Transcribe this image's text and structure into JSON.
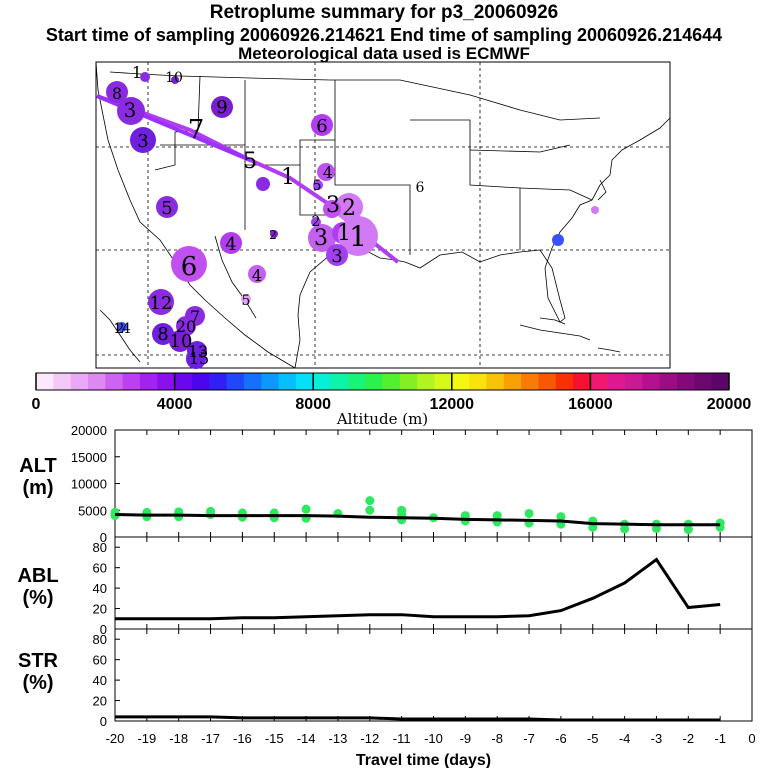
{
  "header": {
    "title": "Retroplume summary for p3_20060926",
    "sampling_line": "Start time of sampling 20060926.214621     End time of sampling 20060926.214644",
    "met_line": "Meteorological data used is ECMWF"
  },
  "colorbar": {
    "tick_labels": [
      "0",
      "4000",
      "8000",
      "12000",
      "16000",
      "20000"
    ],
    "label": "Altitude (m)"
  },
  "map": {
    "labels": [
      "1",
      "10",
      "8",
      "3",
      "9",
      "6",
      "7",
      "3",
      "5",
      "1",
      "4",
      "5",
      "6",
      "5",
      "3",
      "2",
      "2",
      "2",
      "3",
      "1",
      "1",
      "4",
      "3",
      "6",
      "4",
      "5",
      "2",
      "12",
      "7",
      "20",
      "14",
      "8",
      "10",
      "13",
      "15"
    ]
  },
  "chart_data": [
    {
      "type": "line",
      "panel": "ALT",
      "ylabel": "ALT (m)",
      "ylim": [
        0,
        20000
      ],
      "yticks": [
        "0",
        "5000",
        "10000",
        "15000",
        "20000"
      ],
      "x": [
        -20,
        -19,
        -18,
        -17,
        -16,
        -15,
        -14,
        -13,
        -12,
        -11,
        -10,
        -9,
        -8,
        -7,
        -6,
        -5,
        -4,
        -3,
        -2,
        -1
      ],
      "values": [
        4200,
        4100,
        4100,
        4000,
        4000,
        4000,
        4000,
        3900,
        3700,
        3600,
        3500,
        3300,
        3200,
        3100,
        3000,
        2500,
        2400,
        2300,
        2300,
        2300
      ],
      "scatter": [
        [
          -20,
          4000
        ],
        [
          -20,
          4600
        ],
        [
          -19,
          3800
        ],
        [
          -19,
          4600
        ],
        [
          -18,
          3800
        ],
        [
          -18,
          4700
        ],
        [
          -17,
          4200
        ],
        [
          -17,
          4800
        ],
        [
          -16,
          3700
        ],
        [
          -16,
          4500
        ],
        [
          -15,
          3600
        ],
        [
          -15,
          4500
        ],
        [
          -14,
          3500
        ],
        [
          -14,
          5200
        ],
        [
          -13,
          4400
        ],
        [
          -12,
          5000
        ],
        [
          -12,
          6800
        ],
        [
          -11,
          3200
        ],
        [
          -11,
          4200
        ],
        [
          -11,
          5000
        ],
        [
          -10,
          3600
        ],
        [
          -9,
          3000
        ],
        [
          -9,
          4000
        ],
        [
          -8,
          2800
        ],
        [
          -8,
          4000
        ],
        [
          -7,
          2600
        ],
        [
          -7,
          4400
        ],
        [
          -6,
          2400
        ],
        [
          -6,
          3800
        ],
        [
          -5,
          1800
        ],
        [
          -5,
          3000
        ],
        [
          -4,
          1500
        ],
        [
          -4,
          2400
        ],
        [
          -3,
          1600
        ],
        [
          -3,
          2400
        ],
        [
          -2,
          1400
        ],
        [
          -2,
          2400
        ],
        [
          -1,
          1800
        ],
        [
          -1,
          2600
        ]
      ]
    },
    {
      "type": "line",
      "panel": "ABL",
      "ylabel": "ABL (%)",
      "ylim": [
        0,
        90
      ],
      "yticks": [
        "0",
        "20",
        "40",
        "60",
        "80"
      ],
      "x": [
        -20,
        -19,
        -18,
        -17,
        -16,
        -15,
        -14,
        -13,
        -12,
        -11,
        -10,
        -9,
        -8,
        -7,
        -6,
        -5,
        -4,
        -3,
        -2,
        -1
      ],
      "values": [
        10,
        10,
        10,
        10,
        11,
        11,
        12,
        13,
        14,
        14,
        12,
        12,
        12,
        13,
        18,
        30,
        45,
        68,
        21,
        24
      ]
    },
    {
      "type": "line",
      "panel": "STR",
      "ylabel": "STR (%)",
      "ylim": [
        0,
        90
      ],
      "yticks": [
        "0",
        "20",
        "40",
        "60",
        "80"
      ],
      "xlabel": "Travel time (days)",
      "xticks": [
        "-20",
        "-19",
        "-18",
        "-17",
        "-16",
        "-15",
        "-14",
        "-13",
        "-12",
        "-11",
        "-10",
        "-9",
        "-8",
        "-7",
        "-6",
        "-5",
        "-4",
        "-3",
        "-2",
        "-1",
        "0"
      ],
      "x": [
        -20,
        -19,
        -18,
        -17,
        -16,
        -15,
        -14,
        -13,
        -12,
        -11,
        -10,
        -9,
        -8,
        -7,
        -6,
        -5,
        -4,
        -3,
        -2,
        -1
      ],
      "values": [
        4,
        4,
        4,
        4,
        3,
        3,
        3,
        3,
        3,
        2,
        2,
        2,
        2,
        2,
        1,
        1,
        1,
        1,
        1,
        1
      ]
    }
  ]
}
